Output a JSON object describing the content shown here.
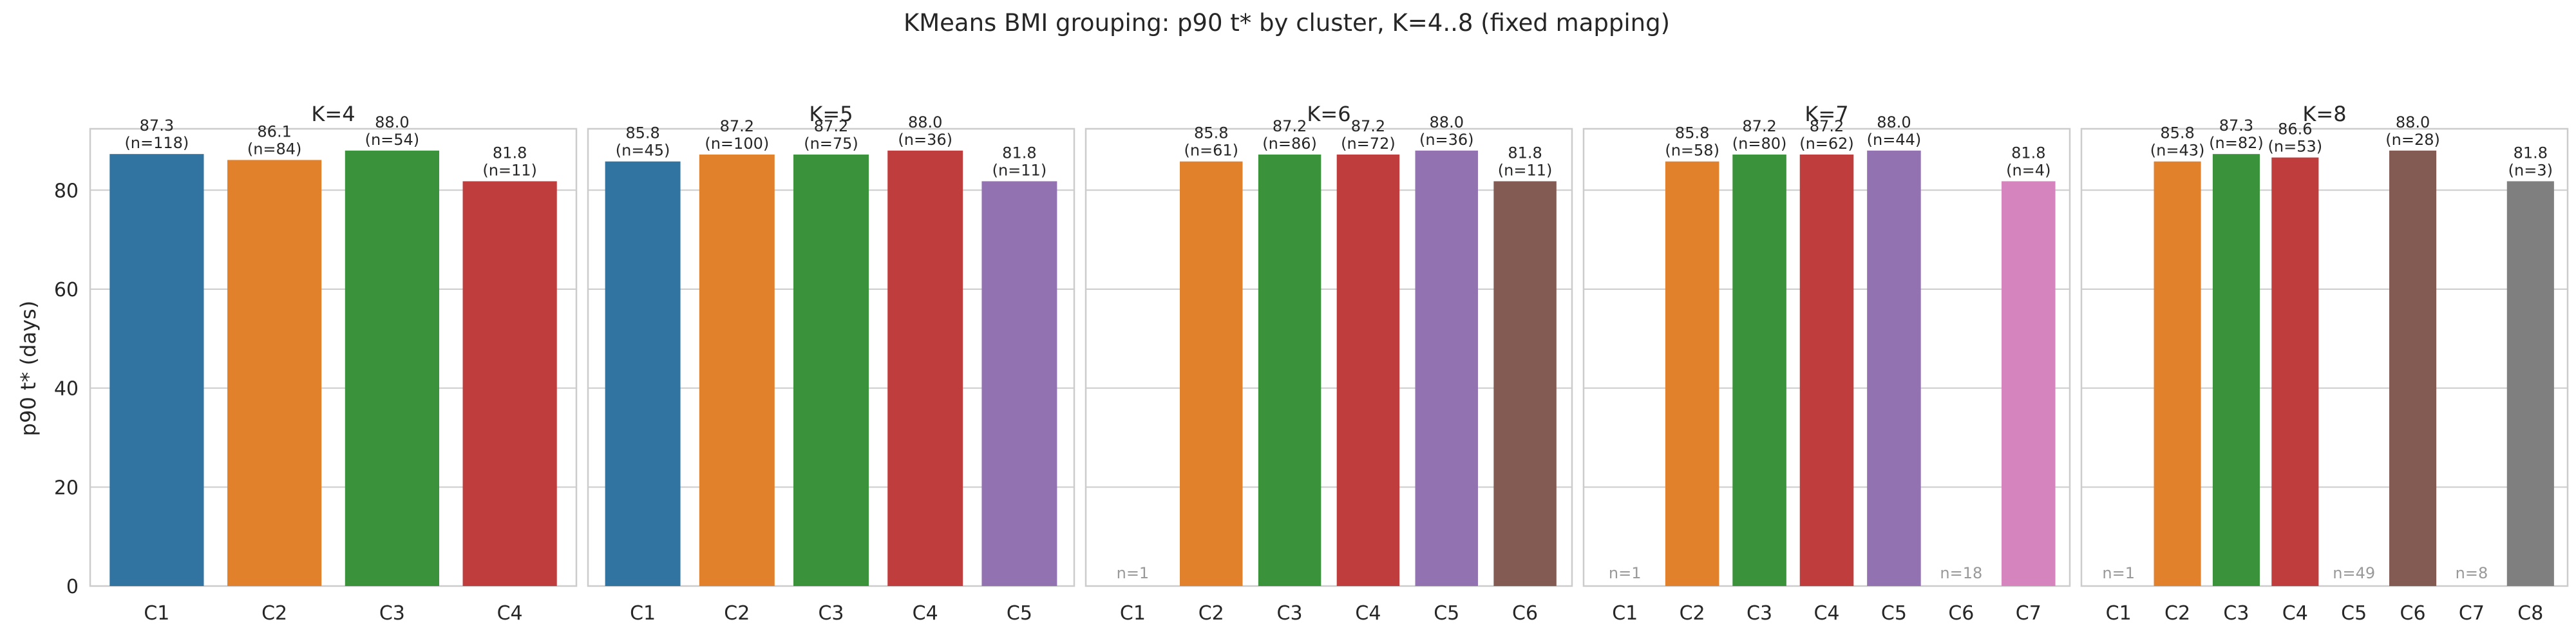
{
  "figure": {
    "suptitle": "KMeans BMI grouping: p90 t* by cluster, K=4..8 (fixed mapping)",
    "ylabel": "p90 t* (days)",
    "yticks": [
      "0",
      "20",
      "40",
      "60",
      "80"
    ]
  },
  "chart_data": [
    {
      "type": "bar",
      "title": "K=4",
      "categories": [
        "C1",
        "C2",
        "C3",
        "C4"
      ],
      "values": [
        87.3,
        86.1,
        88.0,
        81.8
      ],
      "value_labels": [
        "87.3",
        "86.1",
        "88.0",
        "81.8"
      ],
      "n_labels": [
        "(n=118)",
        "(n=84)",
        "(n=54)",
        "(n=11)"
      ],
      "colors": [
        "#3274a1",
        "#e1812c",
        "#3a923a",
        "#c03d3e"
      ],
      "xlabel": "",
      "ylabel": "p90 t* (days)",
      "ylim": [
        0,
        92.4
      ],
      "grid": true
    },
    {
      "type": "bar",
      "title": "K=5",
      "categories": [
        "C1",
        "C2",
        "C3",
        "C4",
        "C5"
      ],
      "values": [
        85.8,
        87.2,
        87.2,
        88.0,
        81.8
      ],
      "value_labels": [
        "85.8",
        "87.2",
        "87.2",
        "88.0",
        "81.8"
      ],
      "n_labels": [
        "(n=45)",
        "(n=100)",
        "(n=75)",
        "(n=36)",
        "(n=11)"
      ],
      "colors": [
        "#3274a1",
        "#e1812c",
        "#3a923a",
        "#c03d3e",
        "#9372b2"
      ],
      "xlabel": "",
      "ylabel": "",
      "ylim": [
        0,
        92.4
      ],
      "grid": true
    },
    {
      "type": "bar",
      "title": "K=6",
      "categories": [
        "C1",
        "C2",
        "C3",
        "C4",
        "C5",
        "C6"
      ],
      "values": [
        null,
        85.8,
        87.2,
        87.2,
        88.0,
        81.8
      ],
      "value_labels": [
        "",
        "85.8",
        "87.2",
        "87.2",
        "88.0",
        "81.8"
      ],
      "n_labels": [
        "n=1",
        "(n=61)",
        "(n=86)",
        "(n=72)",
        "(n=36)",
        "(n=11)"
      ],
      "colors": [
        "#3274a1",
        "#e1812c",
        "#3a923a",
        "#c03d3e",
        "#9372b2",
        "#845b53"
      ],
      "xlabel": "",
      "ylabel": "",
      "ylim": [
        0,
        92.4
      ],
      "grid": true
    },
    {
      "type": "bar",
      "title": "K=7",
      "categories": [
        "C1",
        "C2",
        "C3",
        "C4",
        "C5",
        "C6",
        "C7"
      ],
      "values": [
        null,
        85.8,
        87.2,
        87.2,
        88.0,
        null,
        81.8
      ],
      "value_labels": [
        "",
        "85.8",
        "87.2",
        "87.2",
        "88.0",
        "",
        "81.8"
      ],
      "n_labels": [
        "n=1",
        "(n=58)",
        "(n=80)",
        "(n=62)",
        "(n=44)",
        "n=18",
        "(n=4)"
      ],
      "colors": [
        "#3274a1",
        "#e1812c",
        "#3a923a",
        "#c03d3e",
        "#9372b2",
        "#845b53",
        "#d684bd"
      ],
      "xlabel": "",
      "ylabel": "",
      "ylim": [
        0,
        92.4
      ],
      "grid": true
    },
    {
      "type": "bar",
      "title": "K=8",
      "categories": [
        "C1",
        "C2",
        "C3",
        "C4",
        "C5",
        "C6",
        "C7",
        "C8"
      ],
      "values": [
        null,
        85.8,
        87.3,
        86.6,
        null,
        88.0,
        null,
        81.8
      ],
      "value_labels": [
        "",
        "85.8",
        "87.3",
        "86.6",
        "",
        "88.0",
        "",
        "81.8"
      ],
      "n_labels": [
        "n=1",
        "(n=43)",
        "(n=82)",
        "(n=53)",
        "n=49",
        "(n=28)",
        "n=8",
        "(n=3)"
      ],
      "colors": [
        "#3274a1",
        "#e1812c",
        "#3a923a",
        "#c03d3e",
        "#9372b2",
        "#845b53",
        "#d684bd",
        "#7f7f7f"
      ],
      "xlabel": "",
      "ylabel": "",
      "ylim": [
        0,
        92.4
      ],
      "grid": true
    }
  ]
}
